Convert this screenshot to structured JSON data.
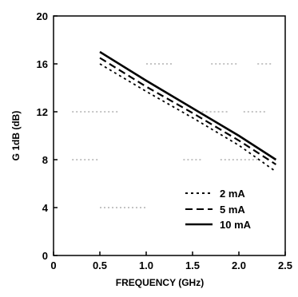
{
  "chart_data": {
    "type": "line",
    "title": "",
    "xlabel": "FREQUENCY (GHz)",
    "ylabel": "G 1dB (dB)",
    "xlim": [
      0,
      2.5
    ],
    "ylim": [
      0,
      20
    ],
    "xticks": [
      "0",
      "0.5",
      "1.0",
      "1.5",
      "2.0",
      "2.5"
    ],
    "yticks": [
      "0",
      "4",
      "8",
      "12",
      "16",
      "20"
    ],
    "grid": "partial dotted horizontal",
    "legend_position": "bottom-right",
    "series": [
      {
        "name": "2 mA",
        "style": "dotted",
        "x": [
          0.5,
          1.0,
          1.5,
          2.0,
          2.4
        ],
        "y": [
          16.0,
          13.7,
          11.5,
          9.2,
          7.0
        ]
      },
      {
        "name": "5 mA",
        "style": "dashed",
        "x": [
          0.5,
          1.0,
          1.5,
          2.0,
          2.4
        ],
        "y": [
          16.5,
          14.1,
          11.9,
          9.6,
          7.6
        ]
      },
      {
        "name": "10 mA",
        "style": "solid",
        "x": [
          0.5,
          1.0,
          1.5,
          2.0,
          2.4
        ],
        "y": [
          17.0,
          14.6,
          12.3,
          10.0,
          8.0
        ]
      }
    ]
  }
}
